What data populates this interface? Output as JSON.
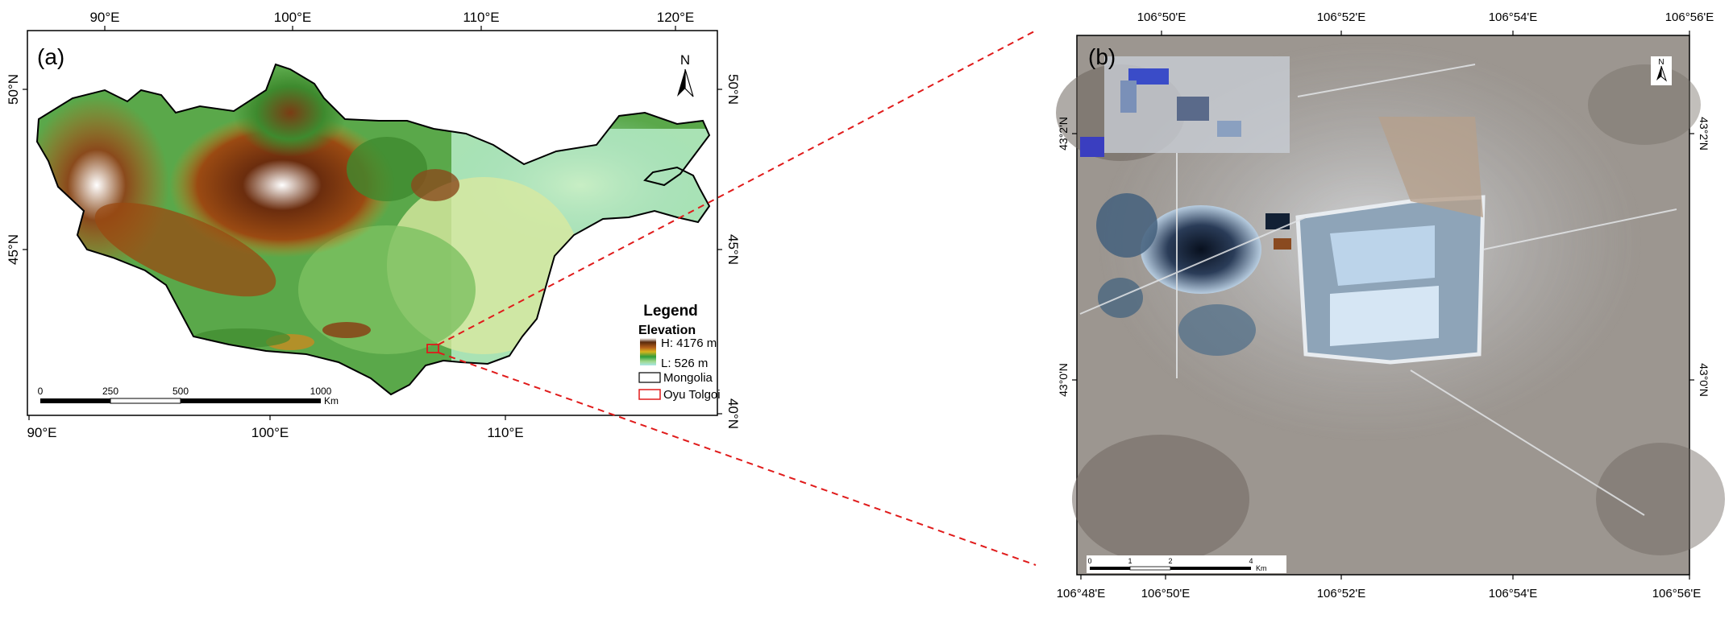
{
  "panel_a": {
    "label": "(a)",
    "top_lon_ticks": [
      "90°E",
      "100°E",
      "110°E",
      "120°E"
    ],
    "bottom_lon_ticks": [
      "90°E",
      "100°E",
      "110°E"
    ],
    "left_lat_ticks": [
      "50°N",
      "45°N"
    ],
    "right_lat_ticks": [
      "50°N",
      "45°N",
      "40°N"
    ],
    "north_label": "N",
    "legend": {
      "title": "Legend",
      "elevation_title": "Elevation",
      "high": "H: 4176 m",
      "low": "L: 526 m",
      "country_label": "Mongolia",
      "site_label": "Oyu Tolgoi"
    },
    "scale": {
      "ticks": [
        "0",
        "250",
        "500",
        "1000"
      ],
      "unit": "Km"
    }
  },
  "panel_b": {
    "label": "(b)",
    "top_lon_ticks": [
      "106°50'E",
      "106°52'E",
      "106°54'E",
      "106°56'E"
    ],
    "bottom_lon_ticks": [
      "106°48'E",
      "106°50'E",
      "106°52'E",
      "106°54'E",
      "106°56'E"
    ],
    "left_lat_ticks": [
      "43°2'N",
      "43°0'N"
    ],
    "right_lat_ticks": [
      "43°2'N",
      "43°0'N"
    ],
    "north_label": "N",
    "scale": {
      "ticks": [
        "0",
        "1",
        "2",
        "4"
      ],
      "unit": "Km"
    }
  },
  "colors": {
    "country_outline": "#000000",
    "site_box": "#e01b1b",
    "connector": "#e01b1b",
    "elev_high": "#5a2a0c",
    "elev_mid": "#c89018",
    "elev_green": "#2e9c3a",
    "elev_low": "#a9e6e6"
  }
}
